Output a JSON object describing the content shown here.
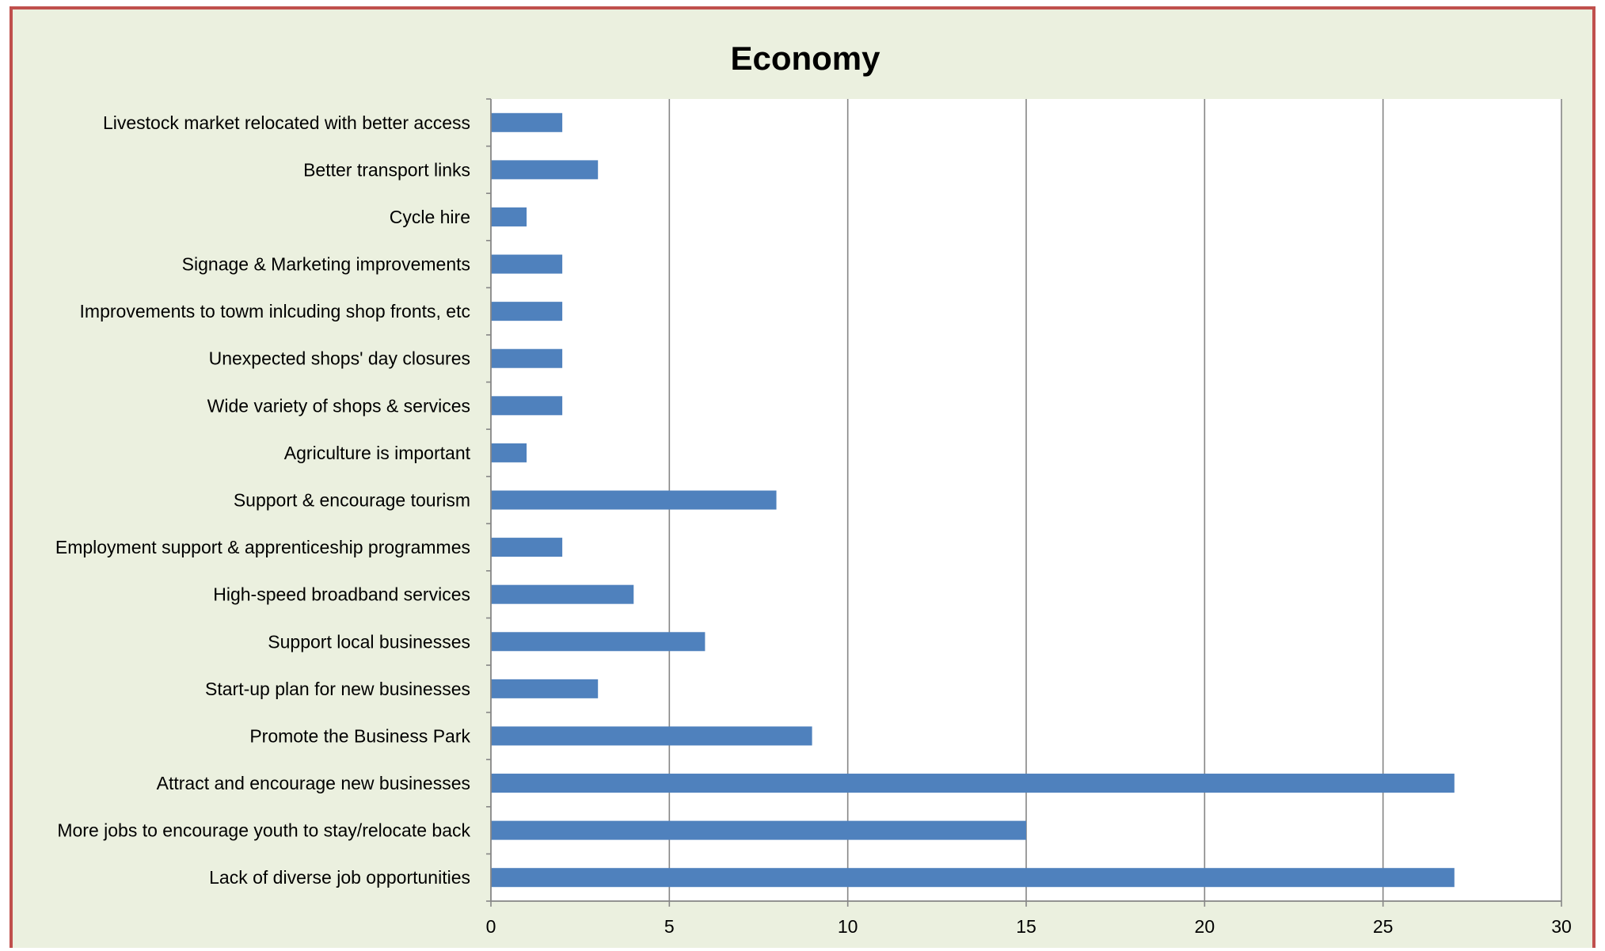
{
  "colors": {
    "frame_border": "#c0504d",
    "frame_background": "#ebf0df",
    "plot_background": "#ffffff",
    "bar": "#4f81bd",
    "gridline": "#868686",
    "axis": "#868686",
    "text": "#000000"
  },
  "chart_data": {
    "type": "bar",
    "orientation": "horizontal",
    "title": "Economy",
    "xlabel": "",
    "ylabel": "",
    "xlim": [
      0,
      30
    ],
    "x_ticks": [
      0,
      5,
      10,
      15,
      20,
      25,
      30
    ],
    "grid": "vertical major gridlines on",
    "legend": "none",
    "categories": [
      "Livestock market relocated with better access",
      "Better transport links",
      "Cycle hire",
      "Signage & Marketing improvements",
      "Improvements to towm inlcuding shop fronts, etc",
      "Unexpected shops' day closures",
      "Wide variety of shops & services",
      "Agriculture is important",
      "Support & encourage tourism",
      "Employment support & apprenticeship programmes",
      "High-speed broadband services",
      "Support local businesses",
      "Start-up plan for new businesses",
      "Promote the Business Park",
      "Attract and encourage new businesses",
      "More jobs to encourage youth to stay/relocate back",
      "Lack of diverse job opportunities"
    ],
    "values": [
      2,
      3,
      1,
      2,
      2,
      2,
      2,
      1,
      8,
      2,
      4,
      6,
      3,
      9,
      27,
      15,
      27
    ]
  }
}
